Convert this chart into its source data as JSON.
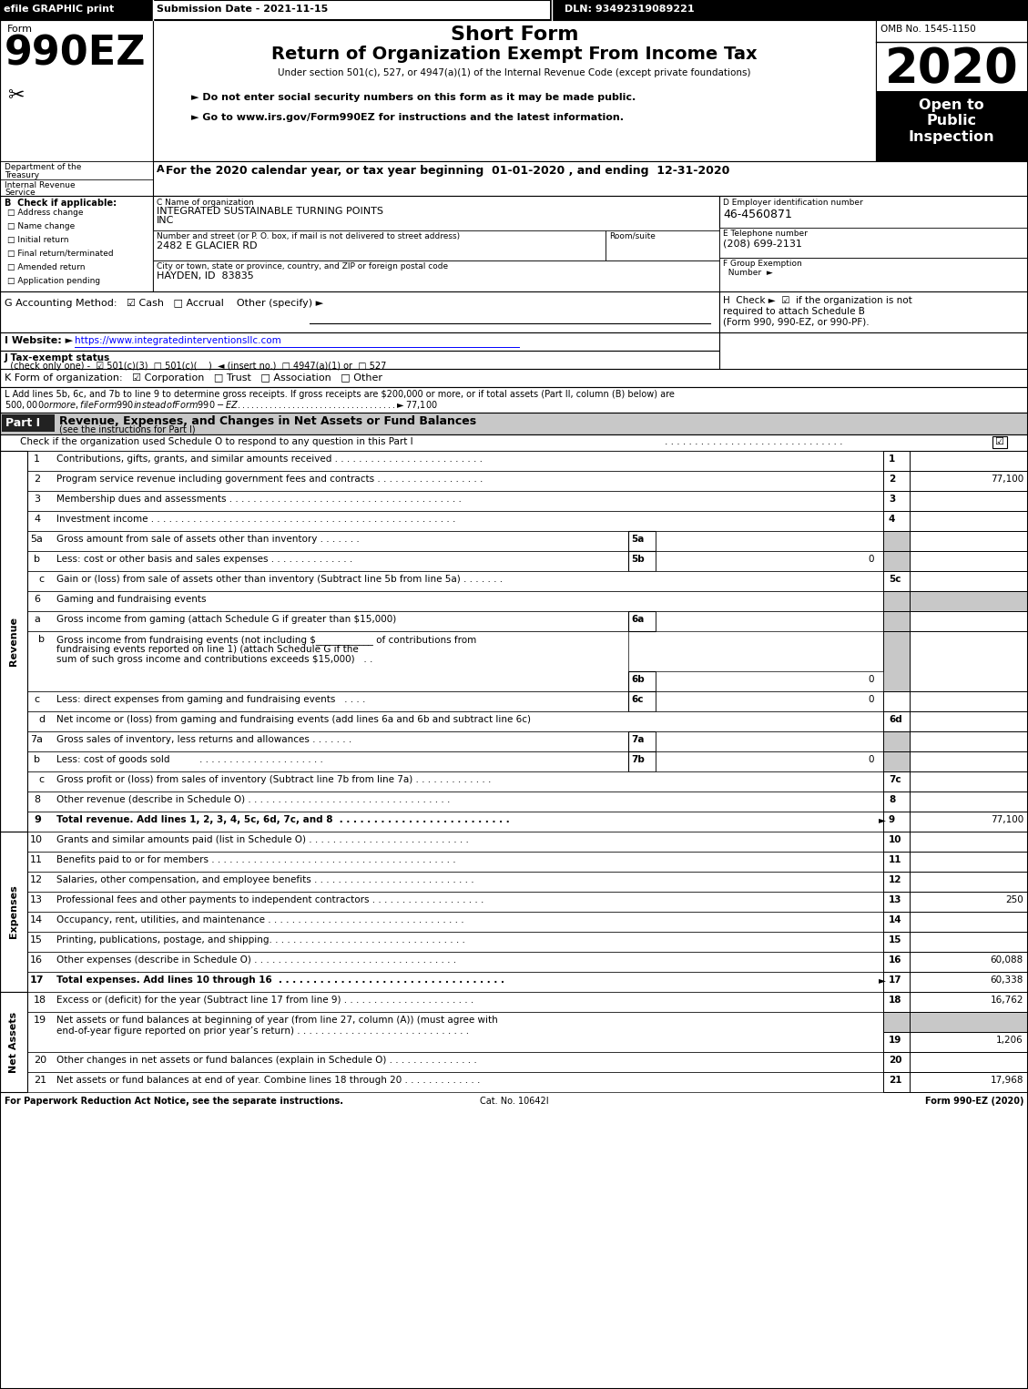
{
  "title_short": "Short Form",
  "title_main": "Return of Organization Exempt From Income Tax",
  "subtitle": "Under section 501(c), 527, or 4947(a)(1) of the Internal Revenue Code (except private foundations)",
  "year": "2020",
  "omb": "OMB No. 1545-1150",
  "efile_text": "efile GRAPHIC print",
  "submission_date": "Submission Date - 2021-11-15",
  "dln": "DLN: 93492319089221",
  "open_to": "Open to\nPublic\nInspection",
  "bullet1": "► Do not enter social security numbers on this form as it may be made public.",
  "bullet2": "► Go to www.irs.gov/Form990EZ for instructions and the latest information.",
  "line_A": "For the 2020 calendar year, or tax year beginning  01-01-2020 , and ending  12-31-2020",
  "checks": [
    "Address change",
    "Name change",
    "Initial return",
    "Final return/terminated",
    "Amended return",
    "Application pending"
  ],
  "org_name1": "INTEGRATED SUSTAINABLE TURNING POINTS",
  "org_name2": "INC",
  "street": "2482 E GLACIER RD",
  "city": "HAYDEN, ID  83835",
  "ein": "46-4560871",
  "phone": "(208) 699-2131",
  "website": "https://www.integratedinterventionsllc.com",
  "l_line1": "L Add lines 5b, 6c, and 7b to line 9 to determine gross receipts. If gross receipts are $200,000 or more, or if total assets (Part II, column (B) below) are",
  "l_line2": "$500,000 or more, file Form 990 instead of Form 990-EZ",
  "l_amount": "► $ 77,100",
  "part1_heading": "Revenue, Expenses, and Changes in Net Assets or Fund Balances",
  "part1_sub": "(see the instructions for Part I)",
  "part1_check_line": "Check if the organization used Schedule O to respond to any question in this Part I",
  "footer_left": "For Paperwork Reduction Act Notice, see the separate instructions.",
  "footer_cat": "Cat. No. 10642I",
  "footer_right": "Form 990-EZ (2020)"
}
